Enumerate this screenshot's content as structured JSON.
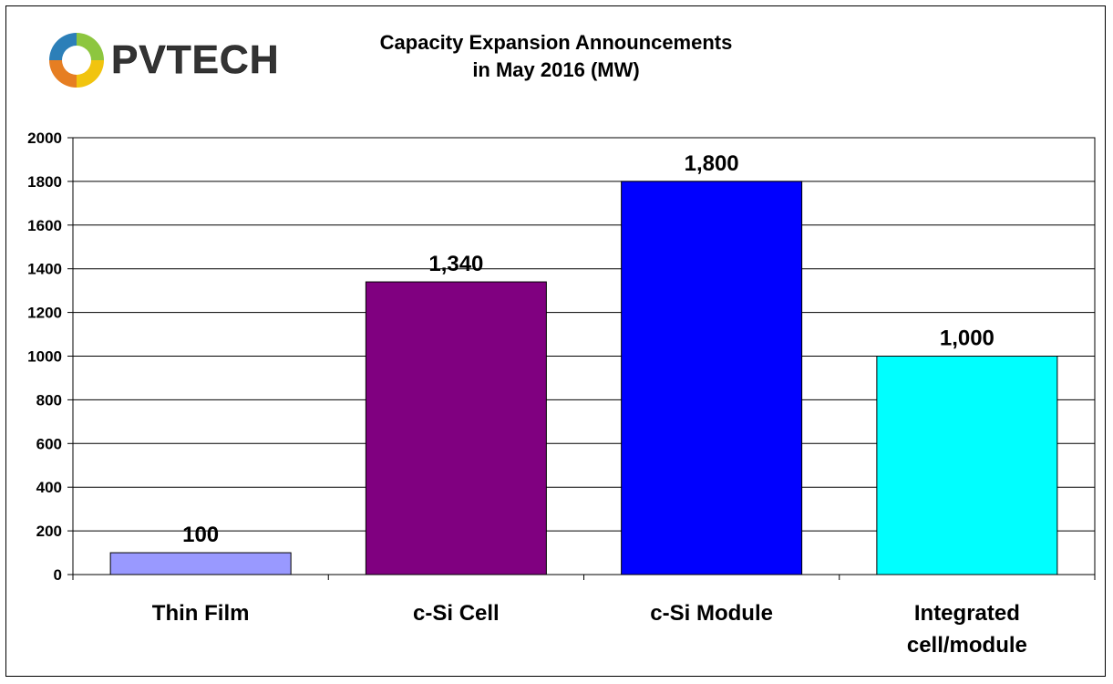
{
  "logo": {
    "text": "PVTECH",
    "colors": [
      "#e67e22",
      "#2c7fb8",
      "#8dc63f",
      "#f1c40f"
    ]
  },
  "chart_data": {
    "type": "bar",
    "title_lines": [
      "Capacity Expansion Announcements",
      "in May 2016 (MW)"
    ],
    "categories": [
      [
        "Thin Film"
      ],
      [
        "c-Si Cell"
      ],
      [
        "c-Si Module"
      ],
      [
        "Integrated",
        "cell/module"
      ]
    ],
    "values": [
      100,
      1340,
      1800,
      1000
    ],
    "data_labels": [
      "100",
      "1,340",
      "1,800",
      "1,000"
    ],
    "colors": [
      "#9999ff",
      "#800080",
      "#0000ff",
      "#00ffff"
    ],
    "ylim": [
      0,
      2000
    ],
    "yticks": [
      0,
      200,
      400,
      600,
      800,
      1000,
      1200,
      1400,
      1600,
      1800,
      2000
    ],
    "grid": true,
    "legend": "none"
  }
}
